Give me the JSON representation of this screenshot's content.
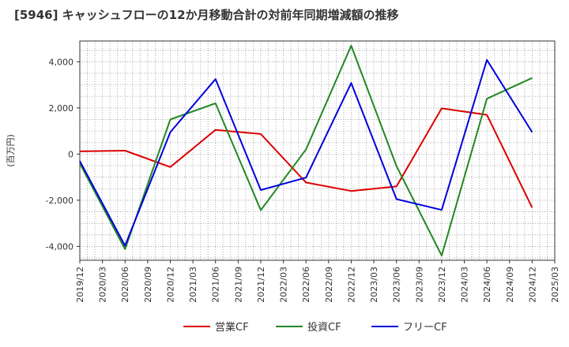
{
  "chart_data": {
    "type": "line",
    "title": "[5946]  キャッシュフローの12か月移動合計の対前年同期増減額の推移",
    "ylabel": "(百万円)",
    "xlabel": "",
    "x_ticks": [
      "2019/12",
      "2020/03",
      "2020/06",
      "2020/09",
      "2020/12",
      "2021/03",
      "2021/06",
      "2021/09",
      "2021/12",
      "2022/03",
      "2022/06",
      "2022/09",
      "2022/12",
      "2023/03",
      "2023/06",
      "2023/09",
      "2023/12",
      "2024/03",
      "2024/06",
      "2024/09",
      "2024/12",
      "2025/03"
    ],
    "y_ticks": [
      -4000,
      -2000,
      0,
      2000,
      4000
    ],
    "y_tick_labels": [
      "-4,000",
      "-2,000",
      "0",
      "2,000",
      "4,000"
    ],
    "ylim": [
      -4600,
      4900
    ],
    "grid": true,
    "legend_position": "bottom",
    "series": [
      {
        "name": "営業CF",
        "color": "#dd0000",
        "x": [
          "2019/12",
          "2020/06",
          "2020/12",
          "2021/06",
          "2021/12",
          "2022/06",
          "2022/12",
          "2023/06",
          "2023/12",
          "2024/06",
          "2024/12"
        ],
        "values": [
          120,
          150,
          -560,
          1050,
          870,
          -1230,
          -1600,
          -1400,
          1980,
          1700,
          -2320
        ]
      },
      {
        "name": "投資CF",
        "color": "#228822",
        "x": [
          "2019/12",
          "2020/06",
          "2020/12",
          "2021/06",
          "2021/12",
          "2022/06",
          "2022/12",
          "2023/06",
          "2023/12",
          "2024/06",
          "2024/12"
        ],
        "values": [
          -400,
          -4120,
          1500,
          2200,
          -2430,
          200,
          4700,
          -520,
          -4400,
          2400,
          3300
        ]
      },
      {
        "name": "フリーCF",
        "color": "#0000dd",
        "x": [
          "2019/12",
          "2020/06",
          "2020/12",
          "2021/06",
          "2021/12",
          "2022/06",
          "2022/12",
          "2023/06",
          "2023/12",
          "2024/06",
          "2024/12"
        ],
        "values": [
          -300,
          -3970,
          950,
          3250,
          -1560,
          -1020,
          3080,
          -1950,
          -2420,
          4080,
          950
        ]
      }
    ]
  }
}
